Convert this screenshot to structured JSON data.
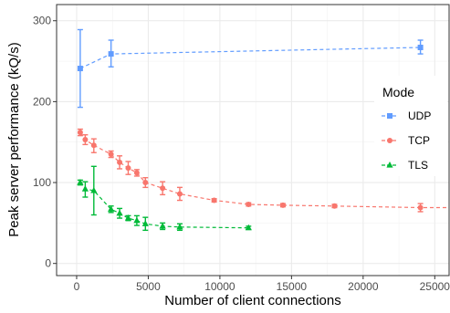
{
  "chart_data": {
    "type": "line",
    "xlabel": "Number of client connections",
    "ylabel": "Peak server performance (kQ/s)",
    "xlim": [
      -1400,
      26000
    ],
    "ylim": [
      -15,
      320
    ],
    "x_ticks": [
      0,
      5000,
      10000,
      15000,
      20000,
      25000
    ],
    "y_ticks": [
      0,
      100,
      200,
      300
    ],
    "grid": true,
    "legend": {
      "title": "Mode",
      "position": "right"
    },
    "series": [
      {
        "name": "UDP",
        "color": "#619CFF",
        "marker": "square",
        "points": [
          {
            "x": 250,
            "y": 241,
            "lo": 193,
            "hi": 289
          },
          {
            "x": 2400,
            "y": 259,
            "lo": 243,
            "hi": 276
          },
          {
            "x": 24000,
            "y": 267,
            "lo": 259,
            "hi": 276
          }
        ]
      },
      {
        "name": "TCP",
        "color": "#F8766D",
        "marker": "circle",
        "points": [
          {
            "x": 250,
            "y": 162,
            "lo": 158,
            "hi": 166
          },
          {
            "x": 600,
            "y": 153,
            "lo": 147,
            "hi": 159
          },
          {
            "x": 1200,
            "y": 146,
            "lo": 137,
            "hi": 154
          },
          {
            "x": 2400,
            "y": 135,
            "lo": 131,
            "hi": 139
          },
          {
            "x": 3000,
            "y": 125,
            "lo": 117,
            "hi": 133
          },
          {
            "x": 3600,
            "y": 118,
            "lo": 110,
            "hi": 126
          },
          {
            "x": 4200,
            "y": 112,
            "lo": 108,
            "hi": 116
          },
          {
            "x": 4800,
            "y": 100,
            "lo": 94,
            "hi": 106
          },
          {
            "x": 6000,
            "y": 93,
            "lo": 85,
            "hi": 101
          },
          {
            "x": 7200,
            "y": 86,
            "lo": 78,
            "hi": 94
          },
          {
            "x": 9600,
            "y": 78,
            "lo": 76,
            "hi": 80
          },
          {
            "x": 12000,
            "y": 73,
            "lo": 71,
            "hi": 75
          },
          {
            "x": 14400,
            "y": 72,
            "lo": 70,
            "hi": 74
          },
          {
            "x": 18000,
            "y": 71,
            "lo": 69,
            "hi": 73
          },
          {
            "x": 24000,
            "y": 69,
            "lo": 64,
            "hi": 74
          },
          {
            "x": 26000,
            "y": 69
          }
        ]
      },
      {
        "name": "TLS",
        "color": "#00BA38",
        "marker": "triangle",
        "points": [
          {
            "x": 250,
            "y": 100,
            "lo": 97,
            "hi": 103
          },
          {
            "x": 600,
            "y": 92,
            "lo": 82,
            "hi": 101
          },
          {
            "x": 1200,
            "y": 90,
            "lo": 60,
            "hi": 120
          },
          {
            "x": 2400,
            "y": 67,
            "lo": 63,
            "hi": 71
          },
          {
            "x": 3000,
            "y": 62,
            "lo": 56,
            "hi": 68
          },
          {
            "x": 3600,
            "y": 56,
            "lo": 53,
            "hi": 59
          },
          {
            "x": 4200,
            "y": 53,
            "lo": 47,
            "hi": 59
          },
          {
            "x": 4800,
            "y": 49,
            "lo": 41,
            "hi": 57
          },
          {
            "x": 6000,
            "y": 46,
            "lo": 42,
            "hi": 50
          },
          {
            "x": 7200,
            "y": 45,
            "lo": 41,
            "hi": 49
          },
          {
            "x": 12000,
            "y": 44,
            "lo": 42,
            "hi": 46
          }
        ]
      }
    ]
  }
}
